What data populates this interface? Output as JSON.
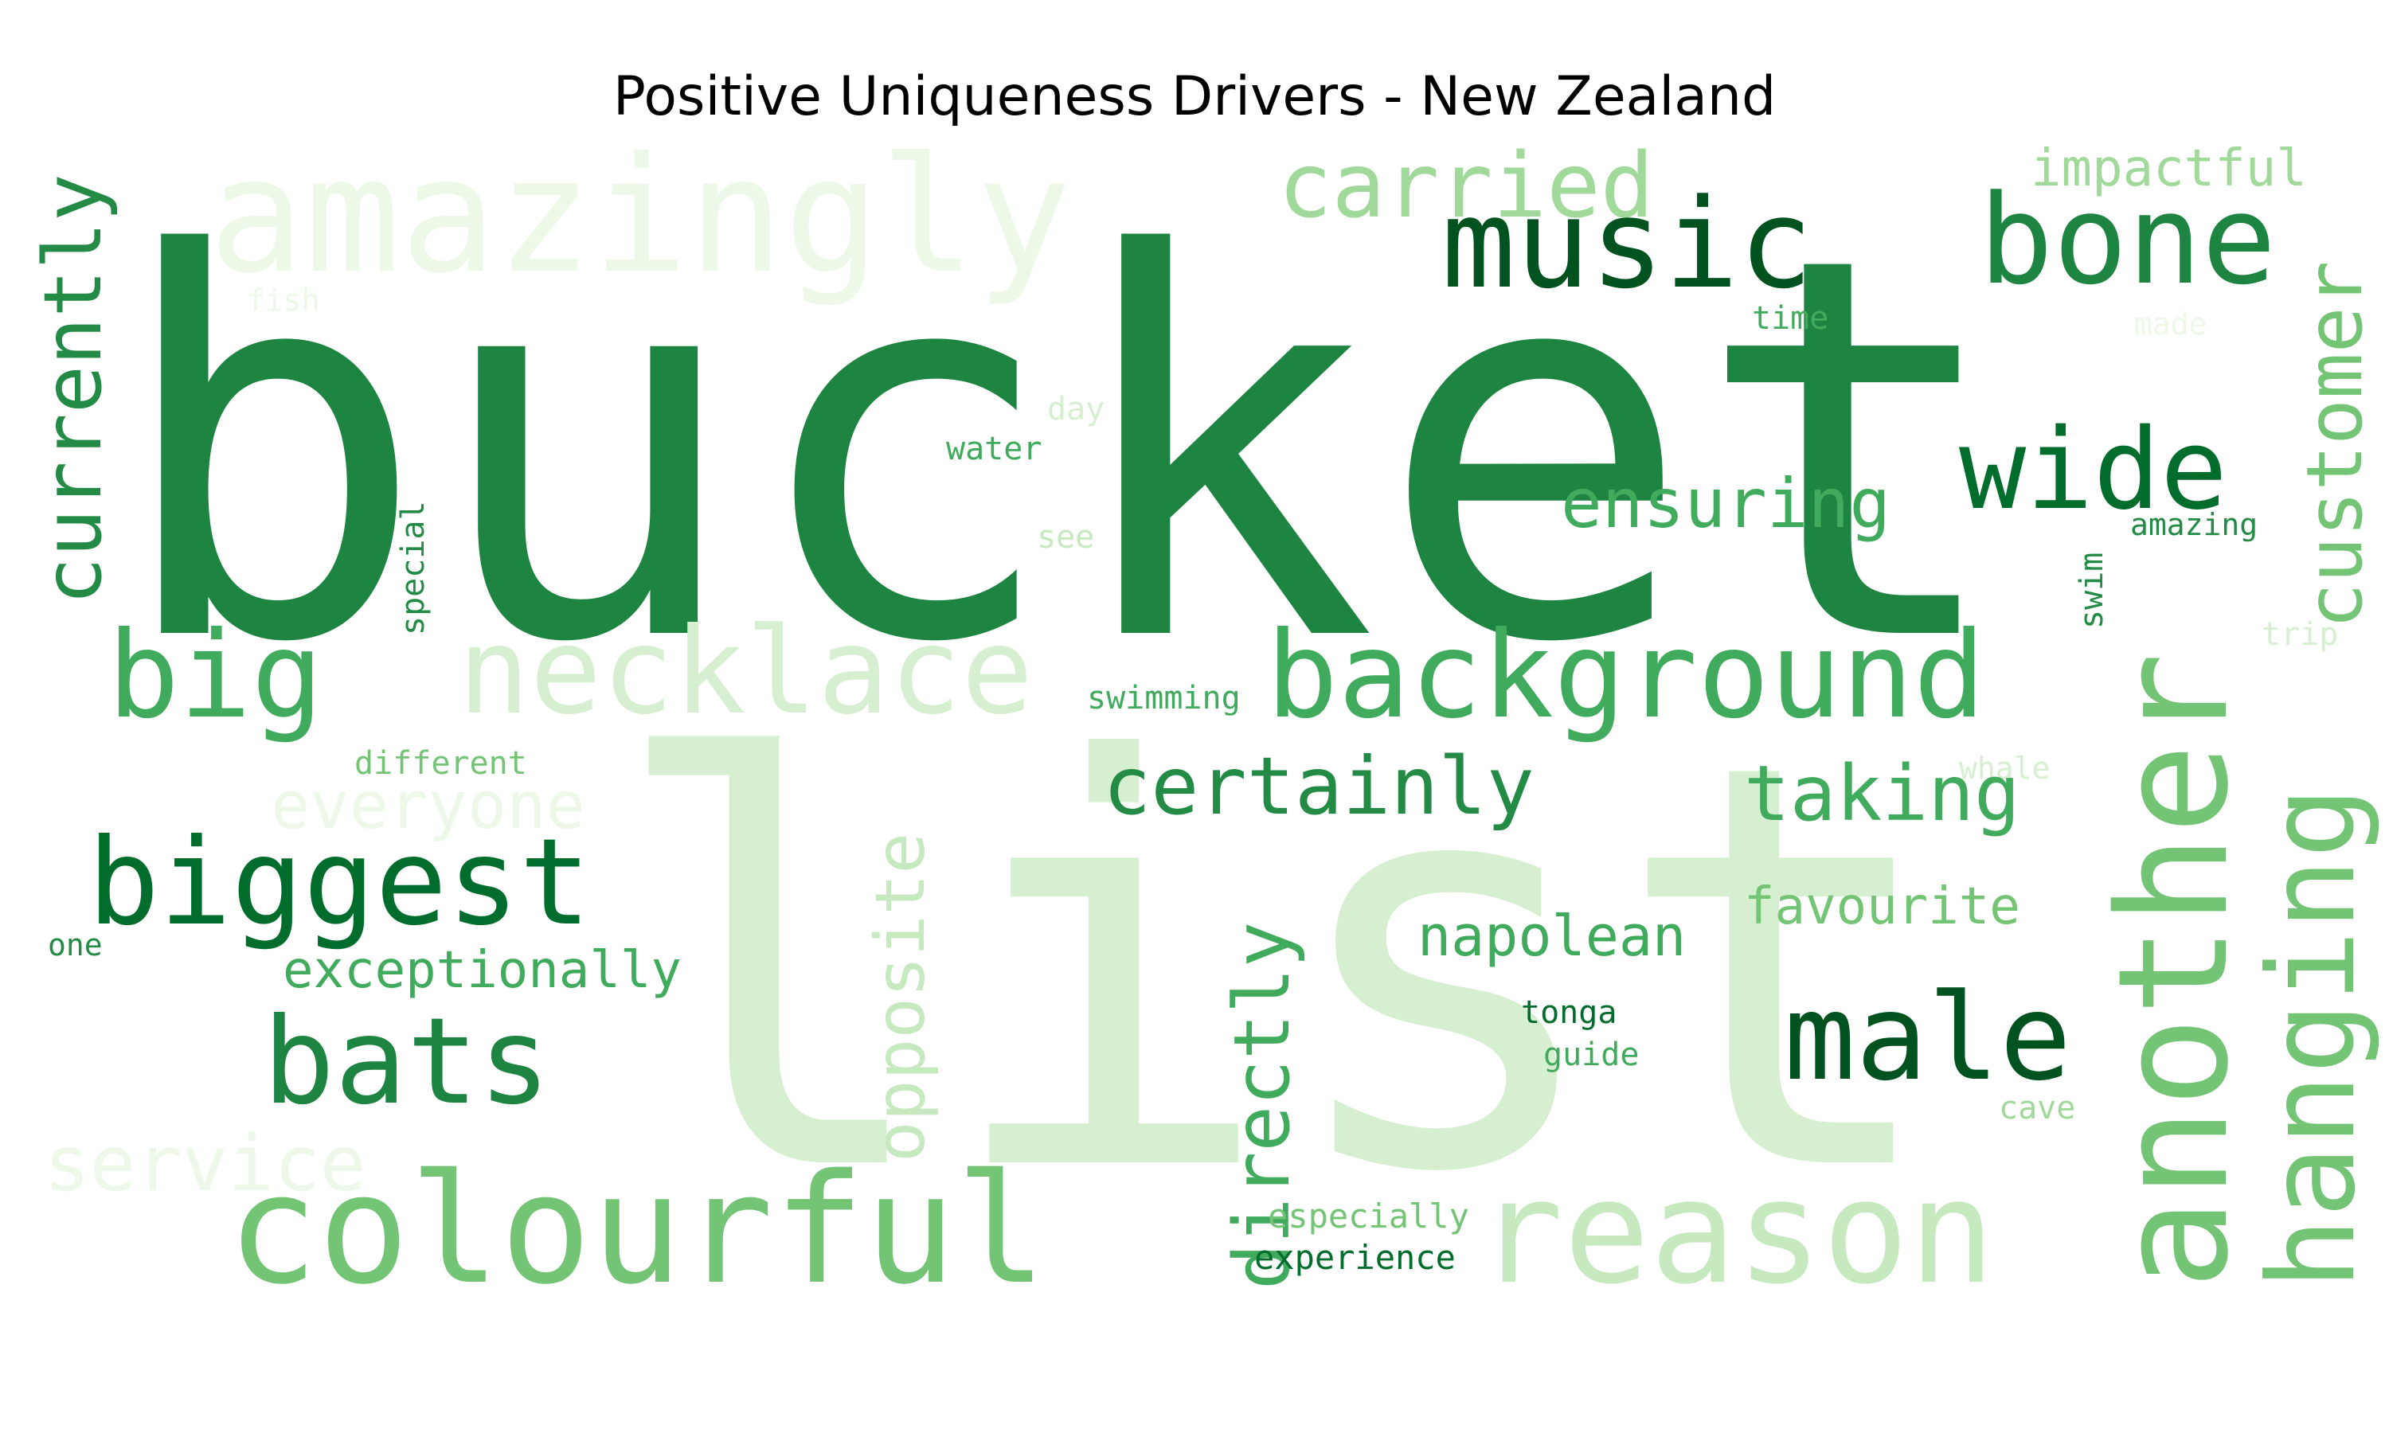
{
  "title": "Positive Uniqueness Drivers - New Zealand",
  "palette": {
    "g1": "#edf8e9",
    "g2": "#d7efd1",
    "g3": "#c7e9c0",
    "g4": "#a1d99b",
    "g5": "#74c476",
    "g6": "#41ab5d",
    "g7": "#238b45",
    "g8": "#1e8442",
    "g9": "#006d2c",
    "g10": "#00531f"
  },
  "words": [
    "amazingly",
    "bucket",
    "list",
    "carried",
    "music",
    "bone",
    "impactful",
    "customer",
    "currently",
    "fish",
    "time",
    "made",
    "day",
    "water",
    "wide",
    "ensuring",
    "see",
    "amazing",
    "special",
    "swim",
    "another",
    "trip",
    "big",
    "necklace",
    "background",
    "swimming",
    "different",
    "everyone",
    "whale",
    "hanging",
    "certainly",
    "taking",
    "opposite",
    "biggest",
    "directly",
    "favourite",
    "napolean",
    "one",
    "exceptionally",
    "bats",
    "male",
    "tonga",
    "guide",
    "service",
    "cave",
    "colourful",
    "reason",
    "especially",
    "experience"
  ]
}
